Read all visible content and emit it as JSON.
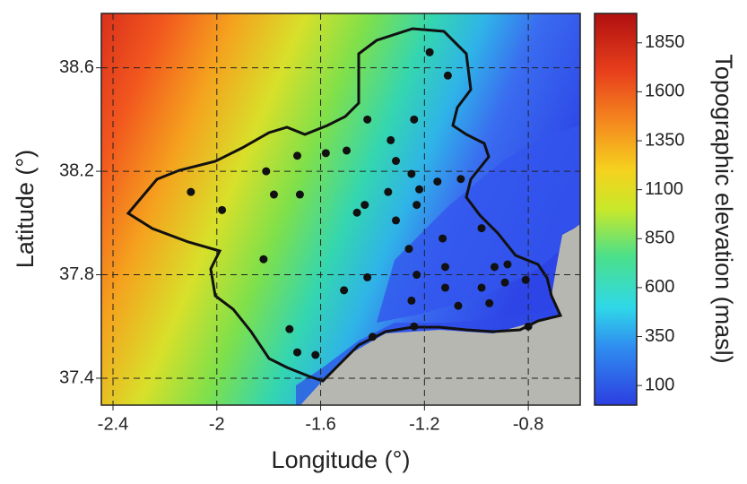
{
  "chart_data": {
    "type": "scatter",
    "x_label": "Longitude (°)",
    "y_label": "Latitude (°)",
    "colorbar_label": "Topographic elevation (masl)",
    "xlim": [
      -2.445,
      -0.6
    ],
    "ylim": [
      37.296,
      38.81
    ],
    "xticks": [
      -2.4,
      -2.0,
      -1.6,
      -1.2,
      -0.8
    ],
    "yticks": [
      37.4,
      37.8,
      38.2,
      38.6
    ],
    "clim": [
      0,
      2000
    ],
    "cticks": [
      100,
      350,
      600,
      850,
      1100,
      1350,
      1600,
      1850
    ],
    "grid": true,
    "color": "#111111",
    "x": [
      -1.18,
      -1.11,
      -1.42,
      -1.24,
      -1.33,
      -1.5,
      -1.58,
      -1.69,
      -1.31,
      -1.81,
      -1.25,
      -1.06,
      -1.15,
      -2.1,
      -1.78,
      -1.68,
      -1.34,
      -1.22,
      -1.98,
      -1.43,
      -1.46,
      -1.31,
      -1.23,
      -0.98,
      -1.13,
      -1.26,
      -1.82,
      -1.12,
      -0.88,
      -0.93,
      -1.23,
      -1.42,
      -1.51,
      -1.12,
      -0.98,
      -0.89,
      -0.81,
      -1.25,
      -1.07,
      -0.95,
      -1.72,
      -1.4,
      -1.24,
      -0.8,
      -1.69,
      -1.62
    ],
    "y": [
      38.66,
      38.57,
      38.4,
      38.4,
      38.32,
      38.28,
      38.27,
      38.26,
      38.24,
      38.2,
      38.19,
      38.17,
      38.16,
      38.12,
      38.11,
      38.11,
      38.12,
      38.13,
      38.05,
      38.07,
      38.04,
      38.01,
      38.07,
      37.98,
      37.94,
      37.9,
      37.86,
      37.83,
      37.84,
      37.83,
      37.8,
      37.79,
      37.74,
      37.75,
      37.75,
      37.77,
      37.78,
      37.7,
      37.68,
      37.69,
      37.59,
      37.56,
      37.6,
      37.6,
      37.5,
      37.49
    ]
  }
}
